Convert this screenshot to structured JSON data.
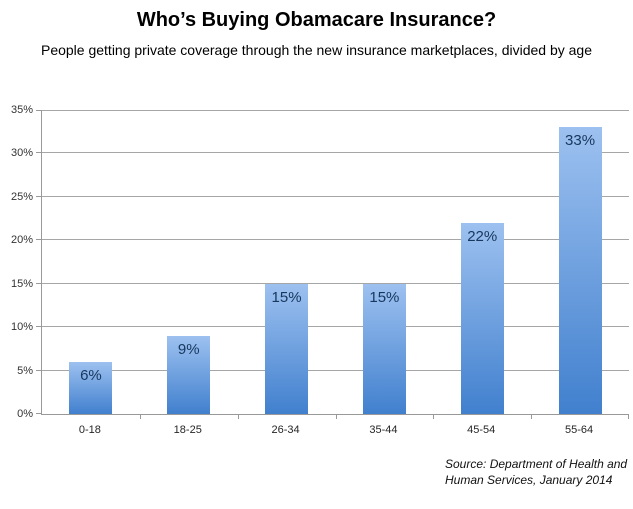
{
  "title": "Who’s Buying Obamacare Insurance?",
  "subtitle": "People getting private coverage through the new insurance marketplaces, divided by age",
  "source_note": {
    "line1": "Source: Department of Health and",
    "line2": "Human Services, January 2014"
  },
  "colors": {
    "bar_top": "#9dc1f0",
    "bar_bottom": "#4180ce",
    "data_label": "#17375d",
    "gridline": "#a6a6a6",
    "axis": "#999999"
  },
  "chart_data": {
    "type": "bar",
    "title": "Who’s Buying Obamacare Insurance?",
    "subtitle": "People getting private coverage through the new insurance marketplaces, divided by age",
    "categories": [
      "0-18",
      "18-25",
      "26-34",
      "35-44",
      "45-54",
      "55-64"
    ],
    "values": [
      6,
      9,
      15,
      15,
      22,
      33
    ],
    "value_labels": [
      "6%",
      "9%",
      "15%",
      "15%",
      "22%",
      "33%"
    ],
    "ytick_labels": [
      "0%",
      "5%",
      "10%",
      "15%",
      "20%",
      "25%",
      "30%",
      "35%"
    ],
    "ylim": [
      0,
      35
    ],
    "ytick_step": 5,
    "xlabel": "",
    "ylabel": "",
    "grid": true,
    "legend": "none",
    "data_label_position": "inside-end",
    "source": "Source: Department of Health and Human Services, January 2014"
  }
}
